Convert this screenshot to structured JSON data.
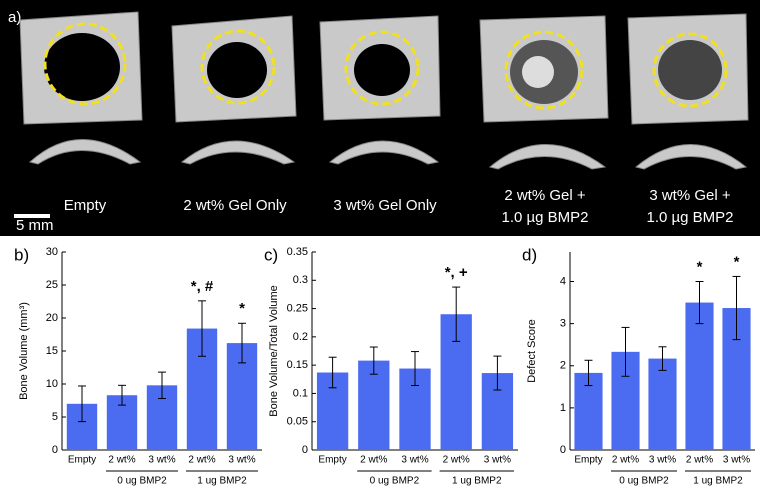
{
  "panel_a": {
    "label": "a)",
    "scale_bar": "5 mm",
    "captions": [
      [
        "Empty"
      ],
      [
        "2 wt% Gel Only"
      ],
      [
        "3 wt% Gel Only"
      ],
      [
        "2 wt% Gel +",
        "1.0 µg BMP2"
      ],
      [
        "3 wt% Gel +",
        "1.0 µg BMP2"
      ]
    ]
  },
  "chart_data": [
    {
      "type": "bar",
      "panel": "b)",
      "y_label": "Bone Volume (mm³)",
      "categories": [
        "Empty",
        "2 wt%",
        "3 wt%",
        "2 wt%",
        "3 wt%"
      ],
      "groups": [
        "0 ug BMP2",
        "1 ug BMP2"
      ],
      "values": [
        7.0,
        8.3,
        9.8,
        18.4,
        16.2
      ],
      "errors": [
        2.7,
        1.5,
        2.0,
        4.2,
        3.0
      ],
      "significance": [
        null,
        null,
        null,
        "*, #",
        "*"
      ],
      "color": "#4b6cf0",
      "ylim": [
        0,
        30
      ],
      "yticks": [
        0,
        5,
        10,
        15,
        20,
        25,
        30
      ]
    },
    {
      "type": "bar",
      "panel": "c)",
      "y_label": "Bone Volume/Total Volume",
      "categories": [
        "Empty",
        "2 wt%",
        "3 wt%",
        "2 wt%",
        "3 wt%"
      ],
      "groups": [
        "0 ug BMP2",
        "1 ug BMP2"
      ],
      "values": [
        0.137,
        0.158,
        0.144,
        0.24,
        0.136
      ],
      "errors": [
        0.027,
        0.024,
        0.03,
        0.048,
        0.03
      ],
      "significance": [
        null,
        null,
        null,
        "*, +",
        null
      ],
      "color": "#4b6cf0",
      "ylim": [
        0,
        0.35
      ],
      "yticks": [
        0,
        0.05,
        0.1,
        0.15,
        0.2,
        0.25,
        0.3,
        0.35
      ]
    },
    {
      "type": "bar",
      "panel": "d)",
      "y_label": "Defect Score",
      "categories": [
        "Empty",
        "2 wt%",
        "3 wt%",
        "2 wt%",
        "3 wt%"
      ],
      "groups": [
        "0 ug BMP2",
        "1 ug BMP2"
      ],
      "values": [
        1.83,
        2.33,
        2.17,
        3.5,
        3.37
      ],
      "errors": [
        0.3,
        0.58,
        0.28,
        0.5,
        0.75
      ],
      "significance": [
        null,
        null,
        null,
        "*",
        "*"
      ],
      "color": "#4b6cf0",
      "ylim": [
        0,
        4.7
      ],
      "yticks": [
        0,
        1,
        2,
        3,
        4
      ]
    }
  ]
}
